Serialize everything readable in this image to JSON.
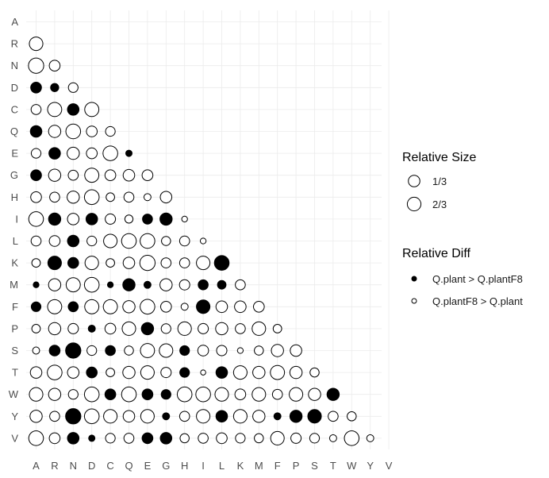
{
  "chart_data": {
    "type": "scatter",
    "subtype": "lower-triangle bubble matrix",
    "categories": [
      "A",
      "R",
      "N",
      "D",
      "C",
      "Q",
      "E",
      "G",
      "H",
      "I",
      "L",
      "K",
      "M",
      "F",
      "P",
      "S",
      "T",
      "W",
      "Y",
      "V"
    ],
    "grid": true,
    "legend_position": "right",
    "size_legend": {
      "title": "Relative Size",
      "entries": [
        {
          "label": "1/3",
          "value": 0.333
        },
        {
          "label": "2/3",
          "value": 0.667
        }
      ]
    },
    "diff_legend": {
      "title": "Relative Diff",
      "entries": [
        {
          "label": "Q.plant > Q.plantF8",
          "fill": "#000000"
        },
        {
          "label": "Q.plantF8 > Q.plant",
          "fill": "#ffffff"
        }
      ]
    },
    "colors": {
      "positive": "#000000",
      "negative": "#ffffff",
      "stroke": "#000000",
      "grid": "#ebebeb"
    },
    "rows": [
      {
        "row": "R",
        "sizes": [
          0.55
        ],
        "signs": [
          0
        ]
      },
      {
        "row": "N",
        "sizes": [
          0.7,
          0.35
        ],
        "signs": [
          0,
          0
        ]
      },
      {
        "row": "D",
        "sizes": [
          0.35,
          0.2,
          0.28
        ],
        "signs": [
          1,
          1,
          0
        ]
      },
      {
        "row": "C",
        "sizes": [
          0.3,
          0.6,
          0.4,
          0.6
        ],
        "signs": [
          0,
          0,
          1,
          0
        ]
      },
      {
        "row": "Q",
        "sizes": [
          0.4,
          0.45,
          0.65,
          0.35,
          0.28
        ],
        "signs": [
          1,
          0,
          0,
          0,
          0
        ]
      },
      {
        "row": "E",
        "sizes": [
          0.28,
          0.4,
          0.45,
          0.35,
          0.65,
          0.12
        ],
        "signs": [
          0,
          1,
          0,
          0,
          0,
          1
        ]
      },
      {
        "row": "G",
        "sizes": [
          0.35,
          0.45,
          0.3,
          0.6,
          0.35,
          0.4,
          0.35
        ],
        "signs": [
          1,
          0,
          0,
          0,
          0,
          0,
          0
        ]
      },
      {
        "row": "H",
        "sizes": [
          0.35,
          0.3,
          0.45,
          0.65,
          0.22,
          0.3,
          0.15,
          0.4
        ],
        "signs": [
          0,
          0,
          0,
          0,
          0,
          0,
          0,
          0
        ]
      },
      {
        "row": "I",
        "sizes": [
          0.65,
          0.45,
          0.4,
          0.4,
          0.32,
          0.2,
          0.3,
          0.45,
          0.1
        ],
        "signs": [
          0,
          1,
          0,
          1,
          0,
          0,
          1,
          1,
          0
        ]
      },
      {
        "row": "L",
        "sizes": [
          0.3,
          0.35,
          0.4,
          0.28,
          0.55,
          0.65,
          0.65,
          0.25,
          0.3,
          0.1
        ],
        "signs": [
          0,
          0,
          1,
          0,
          0,
          0,
          0,
          0,
          0,
          0
        ]
      },
      {
        "row": "K",
        "sizes": [
          0.22,
          0.55,
          0.35,
          0.55,
          0.22,
          0.4,
          0.7,
          0.3,
          0.3,
          0.55,
          0.65
        ],
        "signs": [
          0,
          1,
          1,
          0,
          0,
          0,
          0,
          0,
          0,
          0,
          1
        ]
      },
      {
        "row": "M",
        "sizes": [
          0.1,
          0.45,
          0.6,
          0.65,
          0.1,
          0.45,
          0.15,
          0.45,
          0.32,
          0.3,
          0.22,
          0.3
        ],
        "signs": [
          1,
          0,
          0,
          0,
          1,
          1,
          1,
          0,
          0,
          1,
          1,
          0
        ]
      },
      {
        "row": "F",
        "sizes": [
          0.28,
          0.6,
          0.3,
          0.6,
          0.6,
          0.45,
          0.65,
          0.35,
          0.15,
          0.55,
          0.4,
          0.4,
          0.35
        ],
        "signs": [
          1,
          0,
          1,
          0,
          0,
          0,
          0,
          0,
          0,
          1,
          0,
          0,
          0
        ]
      },
      {
        "row": "P",
        "sizes": [
          0.22,
          0.45,
          0.32,
          0.15,
          0.35,
          0.55,
          0.45,
          0.28,
          0.55,
          0.32,
          0.45,
          0.3,
          0.55,
          0.22
        ],
        "signs": [
          0,
          0,
          0,
          1,
          0,
          0,
          1,
          0,
          0,
          0,
          0,
          0,
          0,
          0
        ]
      },
      {
        "row": "S",
        "sizes": [
          0.15,
          0.35,
          0.7,
          0.28,
          0.3,
          0.25,
          0.6,
          0.55,
          0.28,
          0.35,
          0.32,
          0.1,
          0.25,
          0.45,
          0.4
        ],
        "signs": [
          0,
          1,
          1,
          0,
          1,
          0,
          0,
          0,
          1,
          0,
          0,
          0,
          0,
          0,
          0
        ]
      },
      {
        "row": "T",
        "sizes": [
          0.4,
          0.65,
          0.4,
          0.35,
          0.22,
          0.45,
          0.55,
          0.32,
          0.28,
          0.08,
          0.4,
          0.55,
          0.45,
          0.6,
          0.45,
          0.25
        ],
        "signs": [
          0,
          0,
          0,
          1,
          0,
          0,
          0,
          0,
          1,
          0,
          1,
          0,
          0,
          0,
          0,
          0
        ]
      },
      {
        "row": "W",
        "sizes": [
          0.55,
          0.45,
          0.28,
          0.65,
          0.35,
          0.65,
          0.35,
          0.28,
          0.65,
          0.65,
          0.55,
          0.35,
          0.55,
          0.3,
          0.55,
          0.45,
          0.45
        ],
        "signs": [
          0,
          0,
          0,
          0,
          1,
          0,
          1,
          1,
          0,
          0,
          0,
          0,
          0,
          0,
          0,
          0,
          1
        ]
      },
      {
        "row": "Y",
        "sizes": [
          0.45,
          0.3,
          0.7,
          0.65,
          0.55,
          0.4,
          0.55,
          0.15,
          0.3,
          0.55,
          0.4,
          0.55,
          0.45,
          0.15,
          0.45,
          0.55,
          0.3,
          0.25
        ],
        "signs": [
          0,
          0,
          1,
          0,
          0,
          0,
          0,
          1,
          0,
          0,
          1,
          0,
          0,
          1,
          1,
          1,
          0,
          0
        ]
      },
      {
        "row": "V",
        "sizes": [
          0.65,
          0.35,
          0.4,
          0.12,
          0.28,
          0.3,
          0.35,
          0.4,
          0.25,
          0.3,
          0.35,
          0.28,
          0.25,
          0.55,
          0.32,
          0.28,
          0.15,
          0.65,
          0.15
        ],
        "signs": [
          0,
          0,
          1,
          1,
          0,
          0,
          1,
          1,
          0,
          0,
          0,
          0,
          0,
          0,
          0,
          0,
          0,
          0,
          0
        ]
      }
    ]
  }
}
